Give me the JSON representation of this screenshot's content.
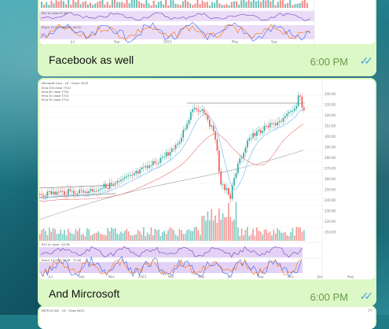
{
  "messages": [
    {
      "caption": "Facebook as well",
      "time": "6:00 PM",
      "status_icon": "double-check-icon",
      "colors": {
        "bubble": "#dcf8c6",
        "time": "#6a9a4a",
        "ticks": "#4fa6d8"
      }
    },
    {
      "caption": "And Mircrosoft",
      "time": "6:00 PM",
      "status_icon": "double-check-icon",
      "chart": {
        "symbol_line": "Microsoft Corp · 1D · Close: $325",
        "legend": [
          "Ema 200 close 7510",
          "Ema 80 close 7704",
          "Ema 20 close 7710",
          "Ema 50 close 7714"
        ],
        "price_ticks": [
          "340.00",
          "330.00",
          "320.00",
          "310.00",
          "300.00",
          "290.00",
          "280.00",
          "270.00",
          "260.00",
          "250.00",
          "240.00",
          "230.00",
          "220.00",
          "210.00"
        ],
        "time_ticks": [
          "Jul",
          "Sep",
          "Nov",
          "2023",
          "Mar",
          "May",
          "Jul",
          "Sep",
          "Nov",
          "Jan",
          "Aug"
        ],
        "rsi_label": "RSI 14 close · 45.96",
        "stoch_label": "Stoch 14 3 3 · 78.58 · 72.69"
      }
    },
    {
      "chart_header": "NETFLIX INC · 1D · Close $425"
    }
  ],
  "colors": {
    "accent": "#4fa6d8",
    "candle_up": "#26a69a",
    "candle_down": "#ef5350",
    "oscillator_band": "#e3d2f5"
  }
}
